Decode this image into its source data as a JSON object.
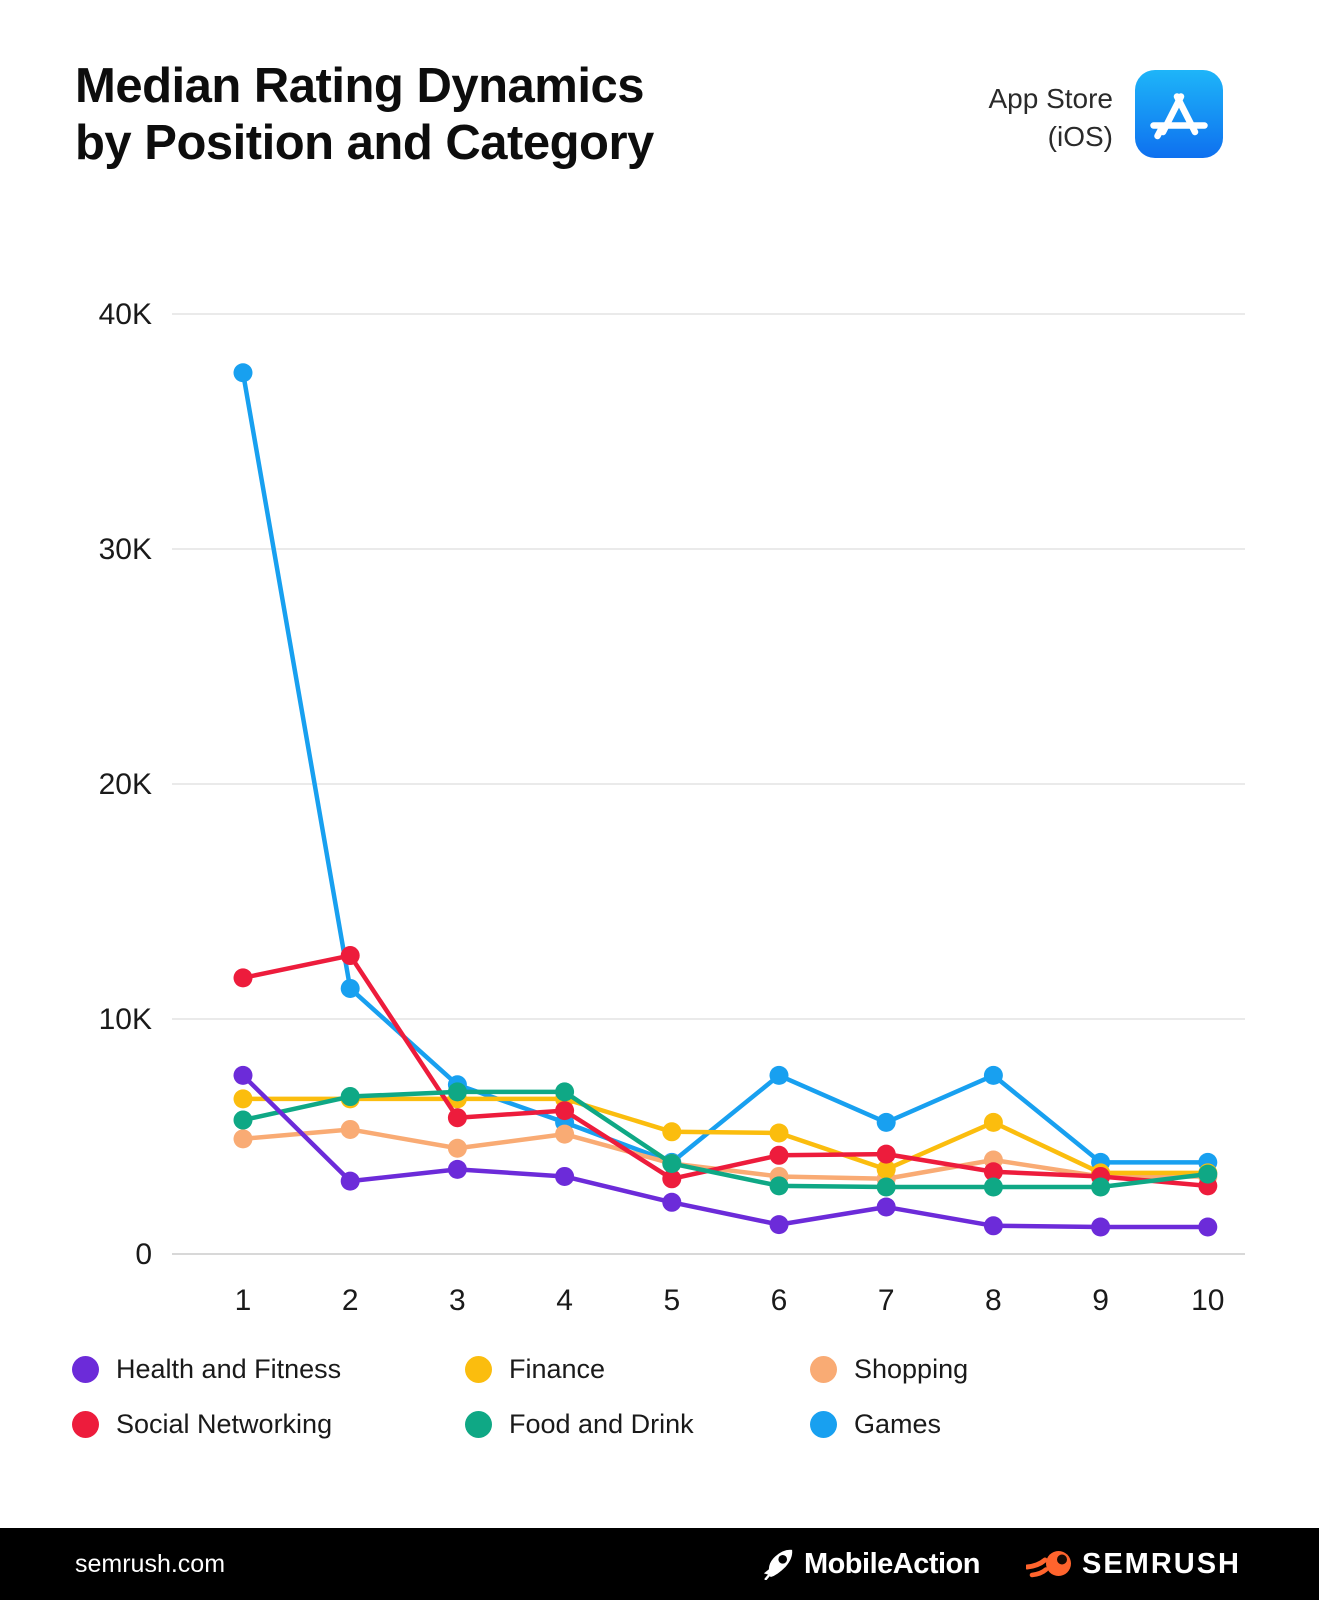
{
  "header": {
    "title_line1": "Median Rating Dynamics",
    "title_line2": "by Position and Category",
    "platform_line1": "App Store",
    "platform_line2": "(iOS)"
  },
  "chart_data": {
    "type": "line",
    "title": "Median Rating Dynamics by Position and Category",
    "xlabel": "",
    "ylabel": "",
    "x": [
      1,
      2,
      3,
      4,
      5,
      6,
      7,
      8,
      9,
      10
    ],
    "ylim": [
      0,
      42000
    ],
    "y_tick_labels": [
      "40K",
      "30K",
      "20K",
      "10K",
      "0"
    ],
    "y_tick_values": [
      40000,
      30000,
      20000,
      10000,
      0
    ],
    "grid": "horizontal",
    "legend_position": "bottom",
    "series": [
      {
        "name": "Health and Fitness",
        "color": "#6C2BD9",
        "values": [
          7600,
          3100,
          3600,
          3300,
          2200,
          1250,
          2000,
          1200,
          1150,
          1150
        ]
      },
      {
        "name": "Finance",
        "color": "#FBBD0E",
        "values": [
          6600,
          6600,
          6600,
          6600,
          5200,
          5150,
          3600,
          5600,
          3450,
          3450
        ]
      },
      {
        "name": "Shopping",
        "color": "#F9AB74",
        "values": [
          4900,
          5300,
          4500,
          5100,
          3850,
          3300,
          3200,
          4000,
          3300,
          3300
        ]
      },
      {
        "name": "Social Networking",
        "color": "#ED1C3C",
        "values": [
          11750,
          12700,
          5800,
          6100,
          3200,
          4200,
          4250,
          3500,
          3300,
          2900
        ]
      },
      {
        "name": "Food and Drink",
        "color": "#0FA885",
        "values": [
          5700,
          6700,
          6900,
          6900,
          3850,
          2900,
          2850,
          2850,
          2850,
          3400
        ]
      },
      {
        "name": "Games",
        "color": "#18A0F0",
        "values": [
          37500,
          11300,
          7200,
          5600,
          3900,
          7600,
          5600,
          7600,
          3900,
          3900
        ]
      }
    ],
    "draw_order": [
      "Games",
      "Shopping",
      "Finance",
      "Social Networking",
      "Food and Drink",
      "Health and Fitness"
    ]
  },
  "legend": {
    "items": [
      {
        "label": "Health and Fitness",
        "color": "#6C2BD9"
      },
      {
        "label": "Finance",
        "color": "#FBBD0E"
      },
      {
        "label": "Shopping",
        "color": "#F9AB74"
      },
      {
        "label": "Social Networking",
        "color": "#ED1C3C"
      },
      {
        "label": "Food and Drink",
        "color": "#0FA885"
      },
      {
        "label": "Games",
        "color": "#18A0F0"
      }
    ]
  },
  "footer": {
    "site": "semrush.com",
    "logo_mobileaction": "MobileAction",
    "logo_semrush": "SEMRUSH"
  }
}
